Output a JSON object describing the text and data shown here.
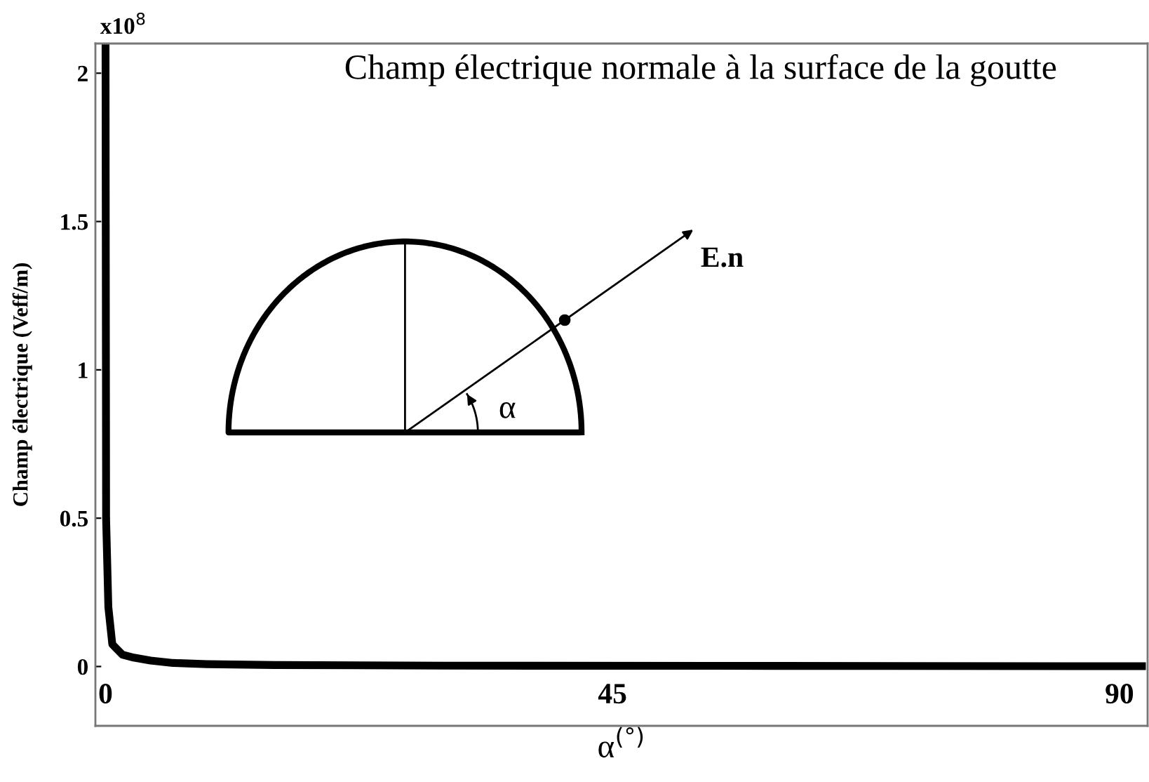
{
  "chart_data": {
    "type": "line",
    "x": [
      0,
      0.05,
      0.25,
      0.6,
      1.5,
      2.5,
      4,
      6,
      9,
      15,
      30,
      60,
      92
    ],
    "series": [
      {
        "color": "#000000",
        "values": [
          2.1,
          0.5,
          0.2,
          0.075,
          0.04,
          0.03,
          0.02,
          0.012,
          0.008,
          0.005,
          0.003,
          0.002,
          0.001
        ]
      }
    ],
    "xlim": [
      -0.9,
      92.5
    ],
    "xticks": [
      0,
      45,
      90
    ],
    "ylim": [
      -0.2,
      2.1
    ],
    "yticks": [
      0,
      0.5,
      1,
      1.5,
      2
    ],
    "xlabel": "α$^{(°)}$",
    "ylabel": "Champ électrique (Veff/m)",
    "annotations": [
      "Champ électrique normale à la surface de la goutte",
      "x10$^{8}$",
      "E.n",
      "α"
    ],
    "grid": false,
    "legend": false,
    "marker": "none",
    "line_style": "solid"
  }
}
